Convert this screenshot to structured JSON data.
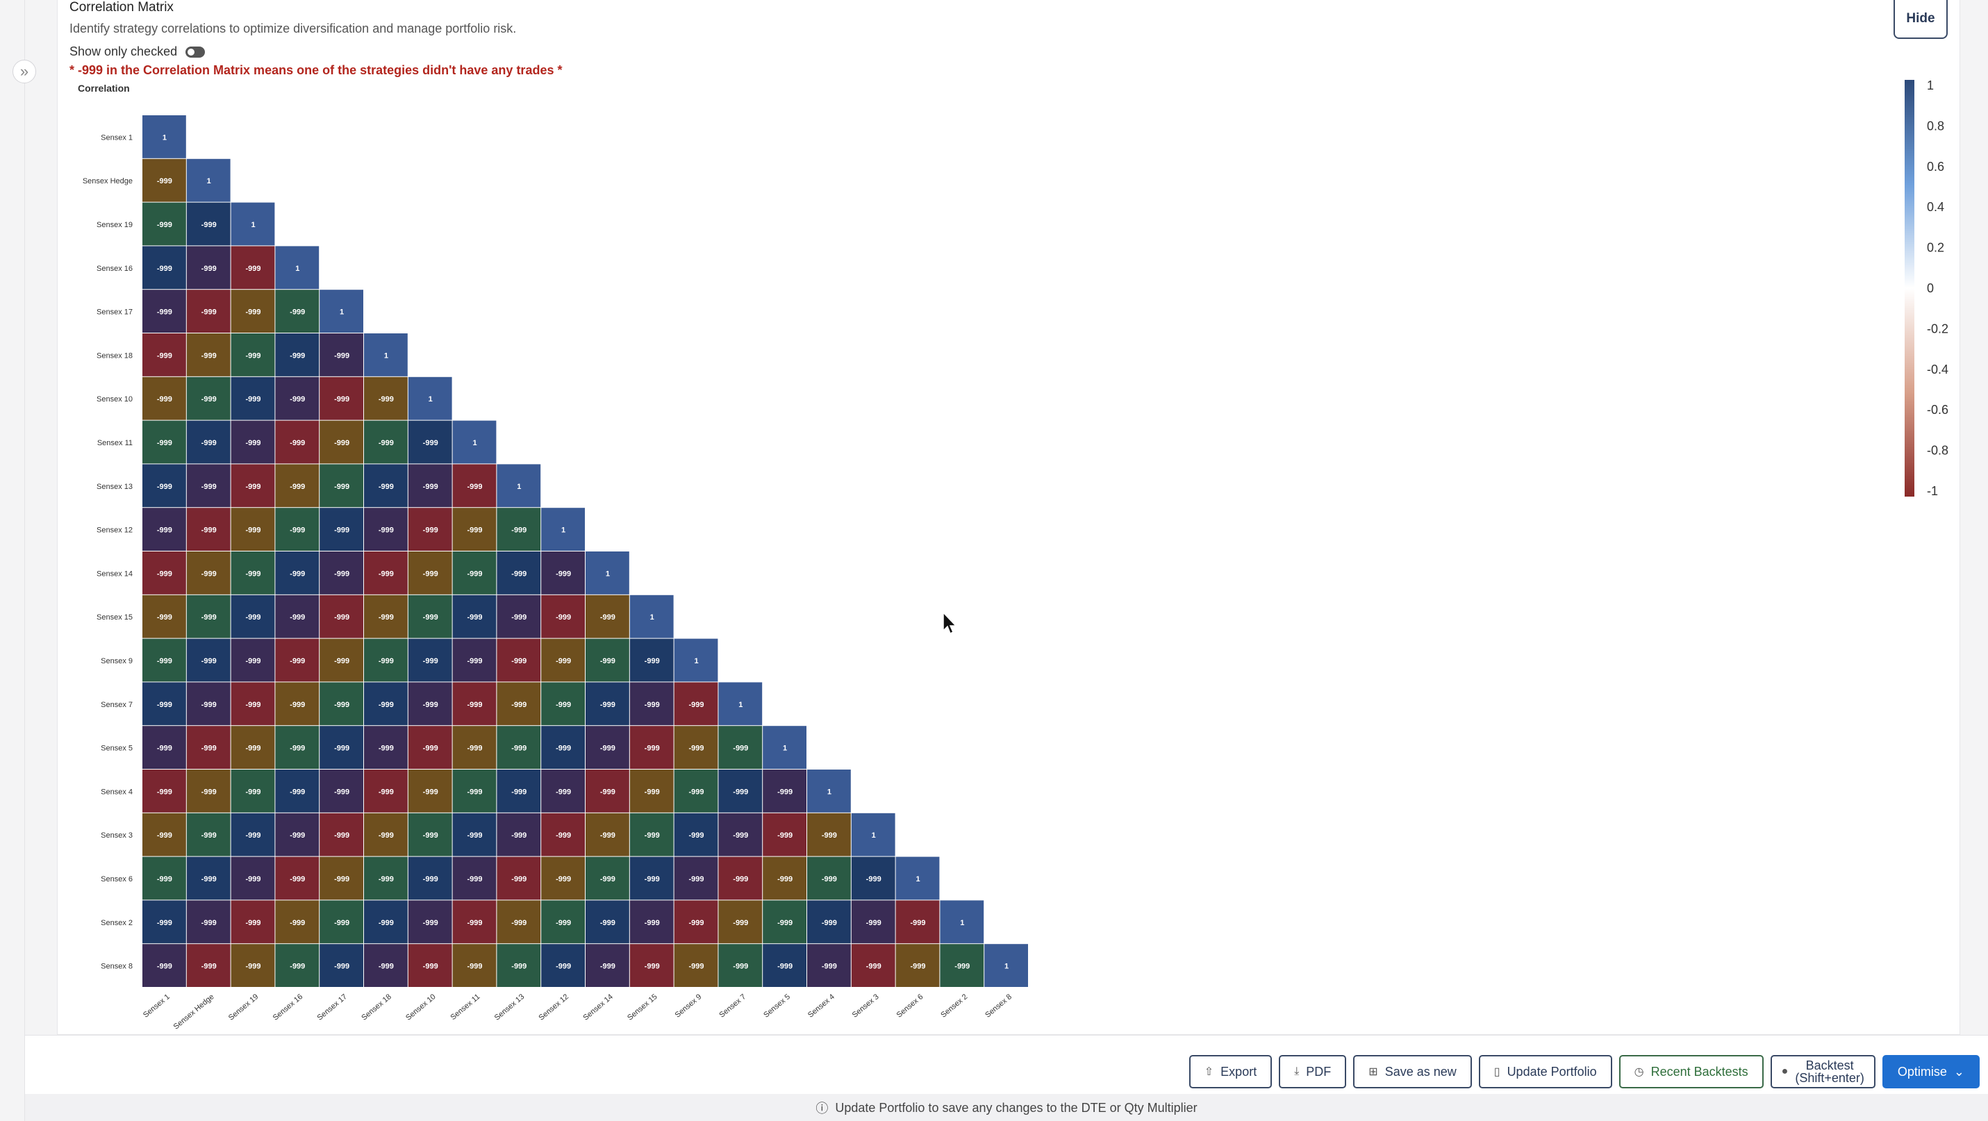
{
  "card": {
    "title": "Correlation Matrix",
    "description": "Identify strategy correlations to optimize diversification and manage portfolio risk.",
    "hide_label": "Hide",
    "toggle_label": "Show only checked",
    "warning": "* -999 in the Correlation Matrix means one of the strategies didn't have any trades *"
  },
  "chart_data": {
    "type": "heatmap",
    "title": "Correlation",
    "labels": [
      "Sensex 1",
      "Sensex Hedge",
      "Sensex 19",
      "Sensex 16",
      "Sensex 17",
      "Sensex 18",
      "Sensex 10",
      "Sensex 11",
      "Sensex 13",
      "Sensex 12",
      "Sensex 14",
      "Sensex 15",
      "Sensex 9",
      "Sensex 7",
      "Sensex 5",
      "Sensex 4",
      "Sensex 3",
      "Sensex 6",
      "Sensex 2",
      "Sensex 8"
    ],
    "diagonal_value": "1",
    "off_diagonal_value": "-999",
    "shape": "lower-triangular",
    "colorscale": {
      "min": -1,
      "max": 1,
      "ticks": [
        "1",
        "0.8",
        "0.6",
        "0.4",
        "0.2",
        "0",
        "-0.2",
        "-0.4",
        "-0.6",
        "-0.8",
        "-1"
      ],
      "colors": [
        "#2d4a7a",
        "#6fa0dc",
        "#ffffff",
        "#d8a08a",
        "#8a2a28"
      ]
    },
    "cell_colors": [
      "#7a2630",
      "#6e4f1e",
      "#2a5a44",
      "#1e3a66",
      "#3a2c55"
    ],
    "diagonal_color": "#3a5a94"
  },
  "footer": {
    "buttons": [
      {
        "name": "export-button",
        "icon": "share-icon",
        "glyph": "⇧",
        "label": "Export"
      },
      {
        "name": "pdf-button",
        "icon": "download-icon",
        "glyph": "⤓",
        "label": "PDF"
      },
      {
        "name": "save-as-new-button",
        "icon": "grid-icon",
        "glyph": "⊞",
        "label": "Save as new"
      },
      {
        "name": "update-portfolio-button",
        "icon": "document-icon",
        "glyph": "▯",
        "label": "Update Portfolio"
      },
      {
        "name": "recent-backtests-button",
        "icon": "clock-icon",
        "glyph": "◷",
        "label": "Recent Backtests"
      }
    ],
    "backtest": {
      "line1": "Backtest",
      "line2": "(Shift+enter)",
      "icon": "play-icon",
      "glyph": "●"
    },
    "optimise": {
      "label": "Optimise",
      "icon": "chevron-down-icon",
      "glyph": "⌄"
    },
    "hint": "Update Portfolio to save any changes to the DTE or Qty Multiplier",
    "hint_icon": "info-icon",
    "hint_glyph": "ⓘ"
  }
}
